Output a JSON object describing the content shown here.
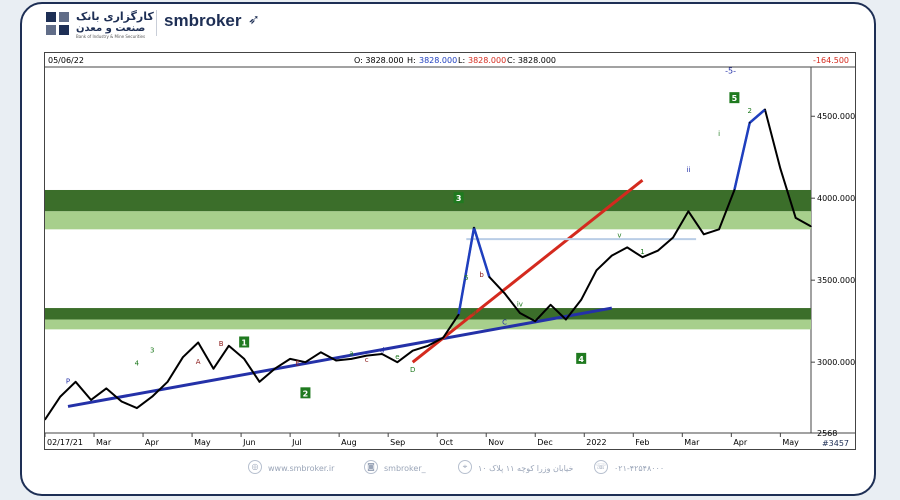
{
  "header": {
    "bank_name_line1": "کارگزاری بانک",
    "bank_name_line2": "صنعت و معدن",
    "bank_name_en": "Bank of Industry & Mine Securities",
    "brand": "smbroker",
    "brand_icon": "paper-plane-icon"
  },
  "chart_info": {
    "date": "05/06/22",
    "open": "O: 3828.000",
    "high_label": "H:",
    "high_value": "3828.000",
    "low_label": "L:",
    "low_value": "3828.000",
    "close": "C: 3828.000",
    "change": "-164.500",
    "bars_count": "#3457"
  },
  "chart_data": {
    "type": "line",
    "ylim": [
      2568,
      4800
    ],
    "y_ticks": [
      4500,
      4000,
      3500,
      3000,
      2568
    ],
    "y_tick_labels": [
      "4500.000",
      "4000.000",
      "3500.000",
      "3000.000",
      "2568"
    ],
    "x_tick_labels": [
      "02/17/21",
      "Mar",
      "Apr",
      "May",
      "Jun",
      "Jul",
      "Aug",
      "Sep",
      "Oct",
      "Nov",
      "Dec",
      "2022",
      "Feb",
      "Mar",
      "Apr",
      "May"
    ],
    "x": [
      0,
      2,
      4,
      6,
      8,
      10,
      12,
      14,
      16,
      18,
      20,
      22,
      24,
      26,
      28,
      30,
      32,
      34,
      36,
      38,
      40,
      42,
      44,
      46,
      48,
      50,
      52,
      54,
      56,
      58,
      60,
      62,
      64,
      66,
      68,
      70,
      72,
      74,
      76,
      78,
      80,
      82,
      84,
      86,
      88,
      90,
      92,
      94,
      96,
      98,
      100
    ],
    "y": [
      2650,
      2790,
      2880,
      2770,
      2840,
      2760,
      2720,
      2790,
      2880,
      3030,
      3120,
      2960,
      3100,
      3020,
      2880,
      2960,
      3020,
      3000,
      3060,
      3010,
      3020,
      3040,
      3050,
      3000,
      3070,
      3100,
      3150,
      3290,
      3820,
      3520,
      3420,
      3300,
      3250,
      3350,
      3260,
      3380,
      3560,
      3650,
      3700,
      3640,
      3680,
      3760,
      3920,
      3780,
      3810,
      4050,
      4460,
      4540,
      4180,
      3880,
      3828
    ],
    "series_colors": {
      "price": "#000000",
      "impulse": "#1f3fbf"
    },
    "zones": [
      {
        "from": 3920,
        "to": 4050,
        "color": "#3b6e2a"
      },
      {
        "from": 3810,
        "to": 3920,
        "color": "#a7cf8c"
      },
      {
        "from": 3260,
        "to": 3330,
        "color": "#3b6e2a"
      },
      {
        "from": 3200,
        "to": 3260,
        "color": "#a7cf8c"
      }
    ],
    "trendlines": [
      {
        "name": "support",
        "color": "#2431a8",
        "from": [
          3,
          2730
        ],
        "to": [
          74,
          3330
        ]
      },
      {
        "name": "channel",
        "color": "#d42a1e",
        "from": [
          48,
          3000
        ],
        "to": [
          78,
          4110
        ]
      },
      {
        "name": "level",
        "color": "#b9cde6",
        "from": [
          55,
          3750
        ],
        "to": [
          85,
          3750
        ]
      }
    ],
    "wave_labels": {
      "boxes": [
        "1",
        "2",
        "3",
        "4",
        "5"
      ],
      "top_label": "-5-",
      "small": [
        "P",
        "3",
        "4",
        "B",
        "A",
        "C",
        "D",
        "E",
        "i",
        "ii",
        "iii",
        "iv",
        "v",
        "1",
        "2",
        "5",
        "a",
        "b",
        "c",
        "d",
        "e"
      ]
    }
  },
  "footer": {
    "website": "www.smbroker.ir",
    "instagram": "smbroker_",
    "address": "خیابان وزرا کوچه ۱۱ پلاک ۱۰",
    "phone": "۰۲۱-۴۲۵۴۸۰۰۰"
  }
}
